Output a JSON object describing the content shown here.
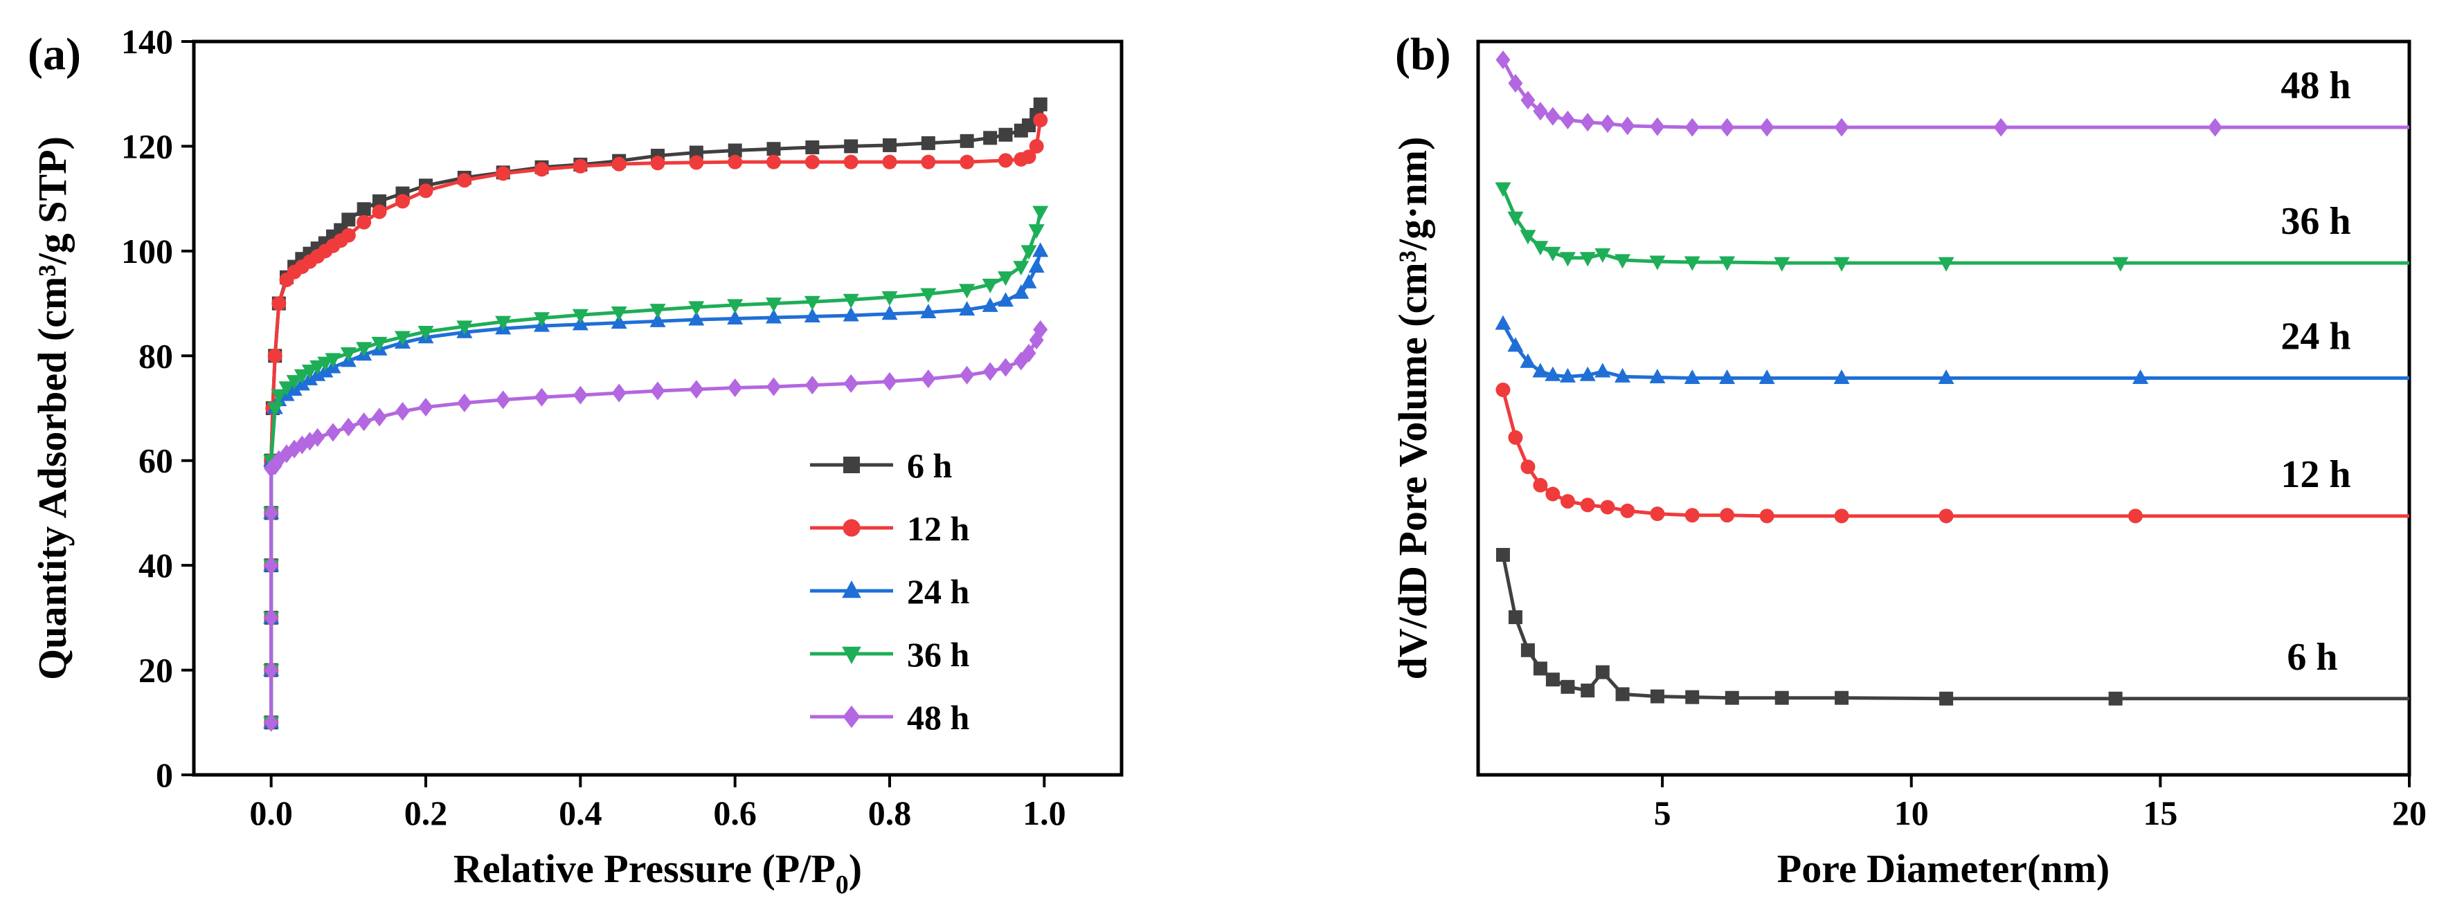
{
  "chart_data": [
    {
      "panel_label": "(a)",
      "type": "line",
      "xlabel_main": "Relative Pressure (P/P",
      "xlabel_sub": "0",
      "xlabel_end": ")",
      "ylabel": "Quantity Adsorbed (cm³/g STP)",
      "xlim": [
        -0.1,
        1.1
      ],
      "ylim": [
        0,
        140
      ],
      "x_ticks": [
        "0.0",
        "0.2",
        "0.4",
        "0.6",
        "0.8",
        "1.0"
      ],
      "y_ticks": [
        "0",
        "20",
        "40",
        "60",
        "80",
        "100",
        "120",
        "140"
      ],
      "legend_position": "lower-right",
      "series": [
        {
          "name": "6 h",
          "color": "#404040",
          "marker": "square",
          "x": [
            0.0,
            0.0,
            0.0,
            0.0,
            0.0,
            0.0,
            0.002,
            0.005,
            0.01,
            0.02,
            0.03,
            0.04,
            0.05,
            0.06,
            0.07,
            0.08,
            0.09,
            0.1,
            0.12,
            0.14,
            0.17,
            0.2,
            0.25,
            0.3,
            0.35,
            0.4,
            0.45,
            0.5,
            0.55,
            0.6,
            0.65,
            0.7,
            0.75,
            0.8,
            0.85,
            0.9,
            0.93,
            0.95,
            0.97,
            0.98,
            0.99,
            0.995
          ],
          "y": [
            10,
            20,
            30,
            40,
            50,
            60,
            70,
            80,
            90,
            95,
            97,
            98.5,
            99.5,
            100.5,
            101.5,
            102.8,
            104,
            106,
            108,
            109.5,
            111,
            112.5,
            114,
            115,
            116,
            116.5,
            117.2,
            118.2,
            118.8,
            119.2,
            119.5,
            119.8,
            120,
            120.2,
            120.6,
            121,
            121.6,
            122.2,
            123,
            124,
            126,
            128
          ]
        },
        {
          "name": "12 h",
          "color": "#ef3b3b",
          "marker": "circle",
          "x": [
            0.0,
            0.0,
            0.0,
            0.0,
            0.0,
            0.0,
            0.002,
            0.005,
            0.01,
            0.02,
            0.03,
            0.04,
            0.05,
            0.06,
            0.07,
            0.08,
            0.09,
            0.1,
            0.12,
            0.14,
            0.17,
            0.2,
            0.25,
            0.3,
            0.35,
            0.4,
            0.45,
            0.5,
            0.55,
            0.6,
            0.65,
            0.7,
            0.75,
            0.8,
            0.85,
            0.9,
            0.95,
            0.97,
            0.98,
            0.99,
            0.995
          ],
          "y": [
            10,
            20,
            30,
            40,
            50,
            60,
            70,
            80,
            90,
            94.5,
            96,
            97,
            98,
            99,
            100,
            101,
            102,
            103,
            105.5,
            107.5,
            109.5,
            111.5,
            113.5,
            114.8,
            115.6,
            116.2,
            116.6,
            116.8,
            116.9,
            117,
            117,
            117,
            117,
            117,
            117,
            117,
            117.3,
            117.5,
            118,
            120,
            125
          ]
        },
        {
          "name": "24 h",
          "color": "#1f6fd6",
          "marker": "triangle-up",
          "x": [
            0.0,
            0.0,
            0.0,
            0.0,
            0.0,
            0.0,
            0.005,
            0.01,
            0.02,
            0.03,
            0.04,
            0.05,
            0.06,
            0.07,
            0.08,
            0.1,
            0.12,
            0.14,
            0.17,
            0.2,
            0.25,
            0.3,
            0.35,
            0.4,
            0.45,
            0.5,
            0.55,
            0.6,
            0.65,
            0.7,
            0.75,
            0.8,
            0.85,
            0.9,
            0.93,
            0.95,
            0.97,
            0.98,
            0.99,
            0.995
          ],
          "y": [
            10,
            20,
            30,
            40,
            50,
            60,
            70,
            71.5,
            72.5,
            73.5,
            74.5,
            75.5,
            76.3,
            77,
            77.8,
            79,
            80.2,
            81.2,
            82.5,
            83.5,
            84.5,
            85.2,
            85.7,
            86,
            86.3,
            86.6,
            86.9,
            87.1,
            87.3,
            87.5,
            87.7,
            88,
            88.3,
            88.8,
            89.5,
            90.5,
            92,
            94,
            97,
            100
          ]
        },
        {
          "name": "36 h",
          "color": "#1eae57",
          "marker": "triangle-down",
          "x": [
            0.0,
            0.0,
            0.0,
            0.0,
            0.0,
            0.0,
            0.005,
            0.01,
            0.02,
            0.03,
            0.04,
            0.05,
            0.06,
            0.07,
            0.08,
            0.1,
            0.12,
            0.14,
            0.17,
            0.2,
            0.25,
            0.3,
            0.35,
            0.4,
            0.45,
            0.5,
            0.55,
            0.6,
            0.65,
            0.7,
            0.75,
            0.8,
            0.85,
            0.9,
            0.93,
            0.95,
            0.97,
            0.98,
            0.99,
            0.995
          ],
          "y": [
            10,
            20,
            30,
            40,
            50,
            60,
            70,
            72.5,
            74,
            75.2,
            76.3,
            77.2,
            78,
            78.7,
            79.4,
            80.5,
            81.5,
            82.5,
            83.6,
            84.6,
            85.6,
            86.5,
            87.2,
            87.8,
            88.3,
            88.8,
            89.3,
            89.7,
            90,
            90.3,
            90.7,
            91.2,
            91.8,
            92.6,
            93.6,
            95,
            97,
            100,
            104,
            107.5
          ]
        },
        {
          "name": "48 h",
          "color": "#b367e0",
          "marker": "diamond",
          "x": [
            0.0,
            0.0,
            0.0,
            0.0,
            0.0,
            0.0,
            0.005,
            0.01,
            0.02,
            0.03,
            0.04,
            0.05,
            0.06,
            0.08,
            0.1,
            0.12,
            0.14,
            0.17,
            0.2,
            0.25,
            0.3,
            0.35,
            0.4,
            0.45,
            0.5,
            0.55,
            0.6,
            0.65,
            0.7,
            0.75,
            0.8,
            0.85,
            0.9,
            0.93,
            0.95,
            0.97,
            0.98,
            0.99,
            0.995
          ],
          "y": [
            10,
            20,
            30,
            40,
            50,
            58.5,
            59,
            60.2,
            61.3,
            62.2,
            63,
            63.7,
            64.4,
            65.4,
            66.4,
            67.4,
            68.3,
            69.4,
            70.2,
            71,
            71.6,
            72.1,
            72.5,
            72.9,
            73.3,
            73.6,
            73.9,
            74.1,
            74.4,
            74.7,
            75.1,
            75.6,
            76.3,
            77,
            77.8,
            79,
            80.5,
            83,
            85
          ]
        }
      ]
    },
    {
      "panel_label": "(b)",
      "type": "line",
      "xlabel": "Pore Diameter(nm)",
      "ylabel": "dV/dD Pore Volume (cm³/g·nm)",
      "xlim": [
        1.3,
        20
      ],
      "x_ticks": [
        "5",
        "10",
        "15",
        "20"
      ],
      "y_ticks_shown": false,
      "note": "curves vertically offset; y values in relative units (0 = bottom axis, 1 = top axis)",
      "series": [
        {
          "name": "6 h",
          "label": "6 h",
          "color": "#404040",
          "marker": "square",
          "x": [
            1.8,
            2.05,
            2.3,
            2.55,
            2.8,
            3.1,
            3.5,
            3.8,
            4.2,
            4.9,
            5.6,
            6.4,
            7.4,
            8.6,
            10.7,
            14.1,
            20
          ],
          "y": [
            0.3,
            0.215,
            0.17,
            0.145,
            0.13,
            0.12,
            0.115,
            0.14,
            0.11,
            0.107,
            0.106,
            0.105,
            0.105,
            0.105,
            0.104,
            0.104,
            0.104
          ]
        },
        {
          "name": "12 h",
          "label": "12 h",
          "color": "#ef3b3b",
          "marker": "circle",
          "x": [
            1.8,
            2.05,
            2.3,
            2.55,
            2.8,
            3.1,
            3.5,
            3.9,
            4.3,
            4.9,
            5.6,
            6.3,
            7.1,
            8.6,
            10.7,
            14.5,
            20
          ],
          "y": [
            0.525,
            0.46,
            0.42,
            0.395,
            0.383,
            0.373,
            0.368,
            0.365,
            0.36,
            0.356,
            0.354,
            0.354,
            0.353,
            0.353,
            0.353,
            0.353,
            0.353
          ]
        },
        {
          "name": "24 h",
          "label": "24 h",
          "color": "#1f6fd6",
          "marker": "triangle-up",
          "x": [
            1.8,
            2.05,
            2.3,
            2.55,
            2.8,
            3.1,
            3.5,
            3.8,
            4.2,
            4.9,
            5.6,
            6.3,
            7.1,
            8.6,
            10.7,
            14.6,
            20
          ],
          "y": [
            0.615,
            0.585,
            0.563,
            0.55,
            0.545,
            0.543,
            0.545,
            0.55,
            0.543,
            0.542,
            0.541,
            0.541,
            0.541,
            0.541,
            0.541,
            0.541,
            0.541
          ]
        },
        {
          "name": "36 h",
          "label": "36 h",
          "color": "#1eae57",
          "marker": "triangle-down",
          "x": [
            1.8,
            2.05,
            2.3,
            2.55,
            2.8,
            3.1,
            3.5,
            3.8,
            4.2,
            4.9,
            5.6,
            6.3,
            7.4,
            8.6,
            10.7,
            14.2,
            20
          ],
          "y": [
            0.8,
            0.76,
            0.735,
            0.72,
            0.712,
            0.705,
            0.705,
            0.71,
            0.702,
            0.7,
            0.699,
            0.699,
            0.698,
            0.698,
            0.698,
            0.698,
            0.698
          ]
        },
        {
          "name": "48 h",
          "label": "48 h",
          "color": "#b367e0",
          "marker": "diamond",
          "x": [
            1.8,
            2.05,
            2.3,
            2.55,
            2.8,
            3.1,
            3.5,
            3.9,
            4.3,
            4.9,
            5.6,
            6.3,
            7.1,
            8.6,
            11.8,
            16.1,
            20
          ],
          "y": [
            0.975,
            0.943,
            0.92,
            0.905,
            0.898,
            0.893,
            0.89,
            0.888,
            0.885,
            0.884,
            0.883,
            0.883,
            0.883,
            0.883,
            0.883,
            0.883,
            0.883
          ]
        }
      ]
    }
  ]
}
